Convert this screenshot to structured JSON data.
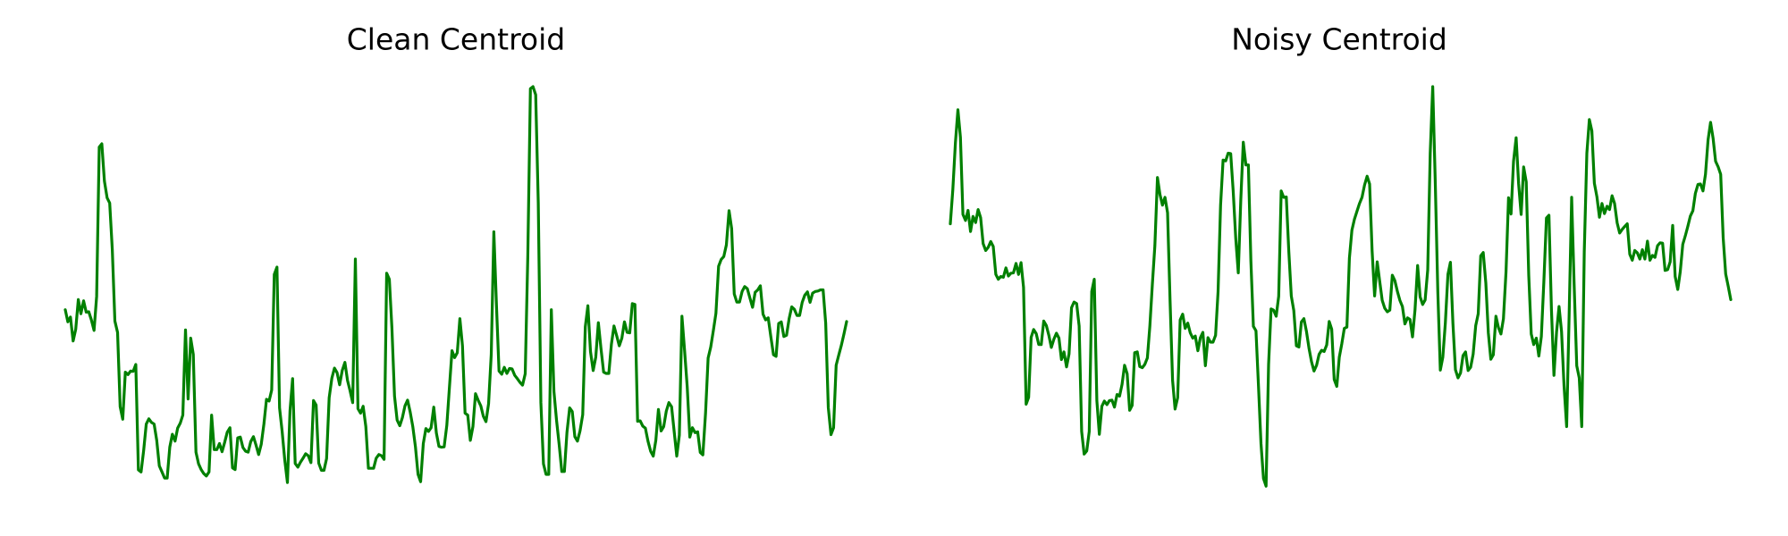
{
  "colors": {
    "series": "#008000",
    "background": "#ffffff",
    "title": "#000000"
  },
  "chart_data": [
    {
      "type": "line",
      "title": "Clean Centroid",
      "xlabel": "",
      "ylabel": "",
      "axes_visible": false,
      "grid": false,
      "ylim": [
        0,
        1
      ],
      "series": [
        {
          "values": [
            0.45,
            0.42,
            0.432,
            0.373,
            0.402,
            0.475,
            0.44,
            0.472,
            0.444,
            0.445,
            0.425,
            0.399,
            0.483,
            0.851,
            0.859,
            0.767,
            0.726,
            0.713,
            0.599,
            0.422,
            0.394,
            0.211,
            0.18,
            0.296,
            0.29,
            0.299,
            0.298,
            0.315,
            0.055,
            0.05,
            0.103,
            0.168,
            0.181,
            0.172,
            0.168,
            0.128,
            0.065,
            0.05,
            0.035,
            0.035,
            0.111,
            0.143,
            0.126,
            0.158,
            0.17,
            0.19,
            0.4,
            0.23,
            0.38,
            0.34,
            0.099,
            0.07,
            0.056,
            0.046,
            0.04,
            0.05,
            0.19,
            0.105,
            0.105,
            0.12,
            0.1,
            0.123,
            0.148,
            0.159,
            0.06,
            0.056,
            0.134,
            0.136,
            0.11,
            0.101,
            0.099,
            0.125,
            0.137,
            0.116,
            0.093,
            0.118,
            0.168,
            0.229,
            0.225,
            0.252,
            0.537,
            0.555,
            0.208,
            0.15,
            0.08,
            0.024,
            0.201,
            0.28,
            0.071,
            0.062,
            0.074,
            0.084,
            0.095,
            0.09,
            0.073,
            0.226,
            0.215,
            0.072,
            0.054,
            0.054,
            0.083,
            0.233,
            0.281,
            0.306,
            0.295,
            0.265,
            0.3,
            0.32,
            0.276,
            0.25,
            0.221,
            0.575,
            0.206,
            0.195,
            0.212,
            0.162,
            0.059,
            0.059,
            0.059,
            0.084,
            0.093,
            0.09,
            0.081,
            0.54,
            0.525,
            0.404,
            0.237,
            0.178,
            0.164,
            0.184,
            0.213,
            0.227,
            0.198,
            0.161,
            0.112,
            0.044,
            0.026,
            0.12,
            0.157,
            0.15,
            0.159,
            0.21,
            0.146,
            0.113,
            0.111,
            0.112,
            0.165,
            0.258,
            0.349,
            0.332,
            0.344,
            0.428,
            0.361,
            0.195,
            0.19,
            0.128,
            0.162,
            0.243,
            0.227,
            0.213,
            0.187,
            0.174,
            0.218,
            0.34,
            0.642,
            0.462,
            0.299,
            0.291,
            0.308,
            0.293,
            0.305,
            0.304,
            0.288,
            0.28,
            0.271,
            0.264,
            0.292,
            0.584,
            0.995,
            1.0,
            0.98,
            0.713,
            0.221,
            0.07,
            0.044,
            0.044,
            0.45,
            0.249,
            0.178,
            0.117,
            0.051,
            0.051,
            0.148,
            0.208,
            0.199,
            0.137,
            0.126,
            0.151,
            0.191,
            0.408,
            0.46,
            0.347,
            0.3,
            0.333,
            0.418,
            0.355,
            0.296,
            0.293,
            0.293,
            0.365,
            0.41,
            0.386,
            0.361,
            0.38,
            0.42,
            0.394,
            0.393,
            0.465,
            0.463,
            0.175,
            0.176,
            0.163,
            0.158,
            0.126,
            0.101,
            0.089,
            0.128,
            0.204,
            0.151,
            0.162,
            0.2,
            0.221,
            0.211,
            0.15,
            0.089,
            0.141,
            0.434,
            0.348,
            0.26,
            0.136,
            0.159,
            0.147,
            0.149,
            0.098,
            0.092,
            0.195,
            0.331,
            0.358,
            0.398,
            0.441,
            0.557,
            0.574,
            0.581,
            0.61,
            0.694,
            0.65,
            0.489,
            0.469,
            0.469,
            0.495,
            0.507,
            0.502,
            0.479,
            0.456,
            0.493,
            0.499,
            0.509,
            0.439,
            0.425,
            0.43,
            0.384,
            0.339,
            0.335,
            0.416,
            0.42,
            0.384,
            0.387,
            0.428,
            0.457,
            0.451,
            0.436,
            0.436,
            0.468,
            0.486,
            0.494,
            0.468,
            0.491,
            0.495,
            0.496,
            0.499,
            0.499,
            0.417,
            0.209,
            0.142,
            0.159,
            0.313,
            0.338,
            0.363,
            0.391,
            0.421
          ]
        }
      ]
    },
    {
      "type": "line",
      "title": "Noisy Centroid",
      "xlabel": "",
      "ylabel": "",
      "axes_visible": false,
      "grid": false,
      "ylim": [
        0,
        1
      ],
      "series": [
        {
          "values": [
            0.662,
            0.746,
            0.862,
            0.943,
            0.875,
            0.685,
            0.67,
            0.695,
            0.643,
            0.68,
            0.665,
            0.697,
            0.677,
            0.613,
            0.596,
            0.604,
            0.618,
            0.606,
            0.537,
            0.525,
            0.532,
            0.53,
            0.553,
            0.533,
            0.54,
            0.541,
            0.564,
            0.537,
            0.566,
            0.505,
            0.217,
            0.234,
            0.382,
            0.401,
            0.391,
            0.364,
            0.364,
            0.422,
            0.411,
            0.387,
            0.357,
            0.377,
            0.392,
            0.38,
            0.327,
            0.346,
            0.309,
            0.341,
            0.455,
            0.469,
            0.465,
            0.41,
            0.15,
            0.094,
            0.102,
            0.15,
            0.495,
            0.525,
            0.226,
            0.143,
            0.212,
            0.225,
            0.216,
            0.226,
            0.227,
            0.21,
            0.241,
            0.237,
            0.266,
            0.313,
            0.292,
            0.202,
            0.214,
            0.344,
            0.346,
            0.31,
            0.307,
            0.315,
            0.331,
            0.41,
            0.513,
            0.608,
            0.776,
            0.734,
            0.708,
            0.727,
            0.689,
            0.472,
            0.276,
            0.205,
            0.233,
            0.425,
            0.439,
            0.404,
            0.417,
            0.393,
            0.38,
            0.385,
            0.349,
            0.381,
            0.394,
            0.312,
            0.381,
            0.37,
            0.37,
            0.387,
            0.495,
            0.708,
            0.819,
            0.817,
            0.836,
            0.835,
            0.743,
            0.625,
            0.541,
            0.72,
            0.863,
            0.807,
            0.807,
            0.57,
            0.409,
            0.398,
            0.262,
            0.12,
            0.034,
            0.015,
            0.315,
            0.452,
            0.449,
            0.434,
            0.483,
            0.743,
            0.727,
            0.728,
            0.595,
            0.484,
            0.448,
            0.361,
            0.358,
            0.42,
            0.428,
            0.396,
            0.355,
            0.322,
            0.299,
            0.313,
            0.34,
            0.35,
            0.347,
            0.363,
            0.421,
            0.402,
            0.278,
            0.261,
            0.333,
            0.366,
            0.404,
            0.407,
            0.577,
            0.646,
            0.673,
            0.693,
            0.712,
            0.727,
            0.757,
            0.779,
            0.76,
            0.595,
            0.484,
            0.568,
            0.52,
            0.473,
            0.454,
            0.445,
            0.449,
            0.535,
            0.522,
            0.495,
            0.473,
            0.458,
            0.415,
            0.43,
            0.426,
            0.383,
            0.45,
            0.559,
            0.482,
            0.463,
            0.474,
            0.548,
            0.836,
            1.0,
            0.769,
            0.494,
            0.301,
            0.333,
            0.417,
            0.537,
            0.567,
            0.416,
            0.302,
            0.282,
            0.294,
            0.337,
            0.346,
            0.3,
            0.308,
            0.34,
            0.411,
            0.44,
            0.583,
            0.591,
            0.516,
            0.393,
            0.328,
            0.339,
            0.434,
            0.406,
            0.39,
            0.428,
            0.544,
            0.726,
            0.686,
            0.816,
            0.874,
            0.76,
            0.685,
            0.802,
            0.765,
            0.535,
            0.39,
            0.364,
            0.38,
            0.336,
            0.384,
            0.519,
            0.676,
            0.683,
            0.45,
            0.288,
            0.395,
            0.458,
            0.396,
            0.262,
            0.162,
            0.438,
            0.727,
            0.511,
            0.312,
            0.282,
            0.162,
            0.592,
            0.836,
            0.919,
            0.891,
            0.762,
            0.728,
            0.678,
            0.712,
            0.687,
            0.705,
            0.697,
            0.731,
            0.712,
            0.664,
            0.639,
            0.648,
            0.655,
            0.662,
            0.587,
            0.572,
            0.596,
            0.59,
            0.575,
            0.598,
            0.575,
            0.619,
            0.572,
            0.584,
            0.579,
            0.608,
            0.615,
            0.614,
            0.547,
            0.549,
            0.568,
            0.658,
            0.532,
            0.5,
            0.544,
            0.611,
            0.632,
            0.656,
            0.681,
            0.694,
            0.737,
            0.759,
            0.76,
            0.743,
            0.784,
            0.869,
            0.912,
            0.873,
            0.816,
            0.802,
            0.784,
            0.627,
            0.538,
            0.507,
            0.475
          ]
        }
      ]
    }
  ]
}
